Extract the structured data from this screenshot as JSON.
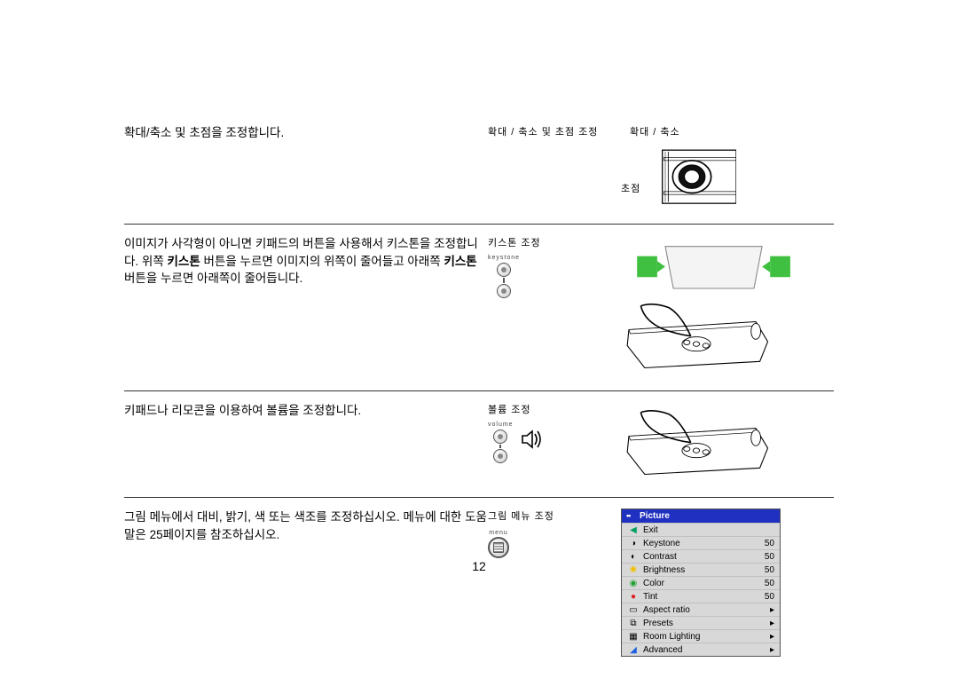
{
  "page_number": "12",
  "section1": {
    "body": "확대/축소 및 초점을 조정합니다.",
    "mid_label": "확대 / 축소 및 초점 조정",
    "right_label_zoom": "확대 / 축소",
    "right_label_focus": "초점"
  },
  "section2": {
    "body_part1": "이미지가 사각형이 아니면 키패드의 버튼을 사용해서 키스톤을 조정합니다. 위쪽 ",
    "body_bold1": "키스톤",
    "body_part2": " 버튼을 누르면 이미지의 위쪽이 줄어들고 아래쪽 ",
    "body_bold2": "키스톤",
    "body_part3": " 버튼을 누르면 아래쪽이 줄어듭니다.",
    "mid_label": "키스톤 조정",
    "btn_caption": "keystone"
  },
  "section3": {
    "body": "키패드나 리모콘을 이용하여 볼륨을 조정합니다.",
    "mid_label": "볼륨 조정",
    "btn_caption": "volume"
  },
  "section4": {
    "body": "그림 메뉴에서 대비, 밝기, 색 또는 색조를 조정하십시오. 메뉴에 대한 도움말은 25페이지를 참조하십시오.",
    "mid_label": "그림 메뉴 조정",
    "btn_caption": "menu"
  },
  "osd": {
    "title": "Picture",
    "rows": [
      {
        "icon": "◀",
        "icon_color": "#00a060",
        "label": "Exit",
        "val": "",
        "arrow": ""
      },
      {
        "icon": "◑",
        "icon_color": "#000000",
        "label": "Keystone",
        "val": "50",
        "arrow": ""
      },
      {
        "icon": "◐",
        "icon_color": "#000000",
        "label": "Contrast",
        "val": "50",
        "arrow": ""
      },
      {
        "icon": "✺",
        "icon_color": "#f0c000",
        "label": "Brightness",
        "val": "50",
        "arrow": ""
      },
      {
        "icon": "◉",
        "icon_color": "#20a030",
        "label": "Color",
        "val": "50",
        "arrow": ""
      },
      {
        "icon": "●",
        "icon_color": "#e02020",
        "label": "Tint",
        "val": "50",
        "arrow": ""
      },
      {
        "icon": "▭",
        "icon_color": "#000000",
        "label": "Aspect ratio",
        "val": "",
        "arrow": "▸"
      },
      {
        "icon": "⧉",
        "icon_color": "#000000",
        "label": "Presets",
        "val": "",
        "arrow": "▸"
      },
      {
        "icon": "▦",
        "icon_color": "#000000",
        "label": "Room Lighting",
        "val": "",
        "arrow": "▸"
      },
      {
        "icon": "◢",
        "icon_color": "#2060e0",
        "label": "Advanced",
        "val": "",
        "arrow": "▸"
      }
    ]
  },
  "colors": {
    "rule": "#333333",
    "osd_title_bg": "#2030c0",
    "osd_bg": "#d8d8d8",
    "arrow_green": "#40c040"
  }
}
